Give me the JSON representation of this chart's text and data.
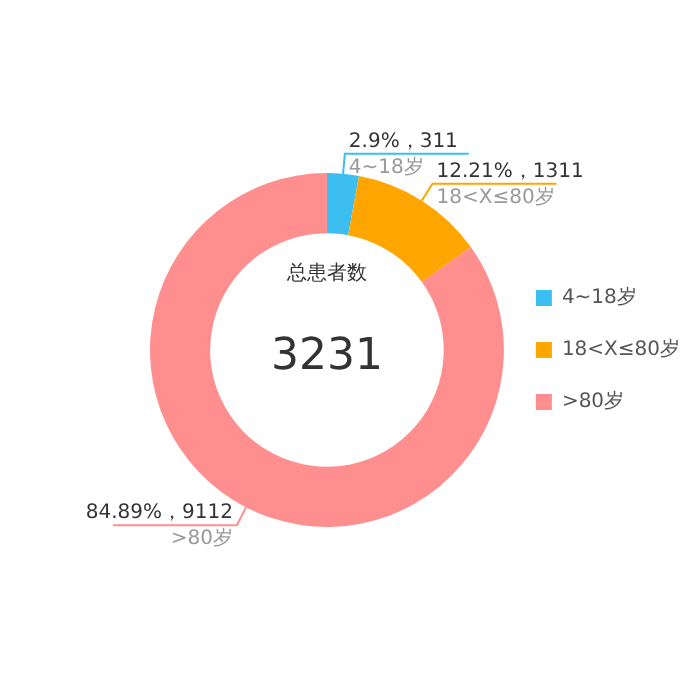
{
  "chart_data": {
    "type": "donut",
    "title": "总患者数",
    "annotations": [
      "3231"
    ],
    "categories": [
      "4~18岁",
      "18<X≤80岁",
      ">80岁"
    ],
    "values": [
      311,
      1311,
      9112
    ],
    "colors": [
      "#3cbff0",
      "#ffa500",
      "#ff8f8f"
    ],
    "value_labels": [
      "2.9%，311",
      "12.21%，1311",
      "84.89%，9112"
    ],
    "legend": "right"
  }
}
